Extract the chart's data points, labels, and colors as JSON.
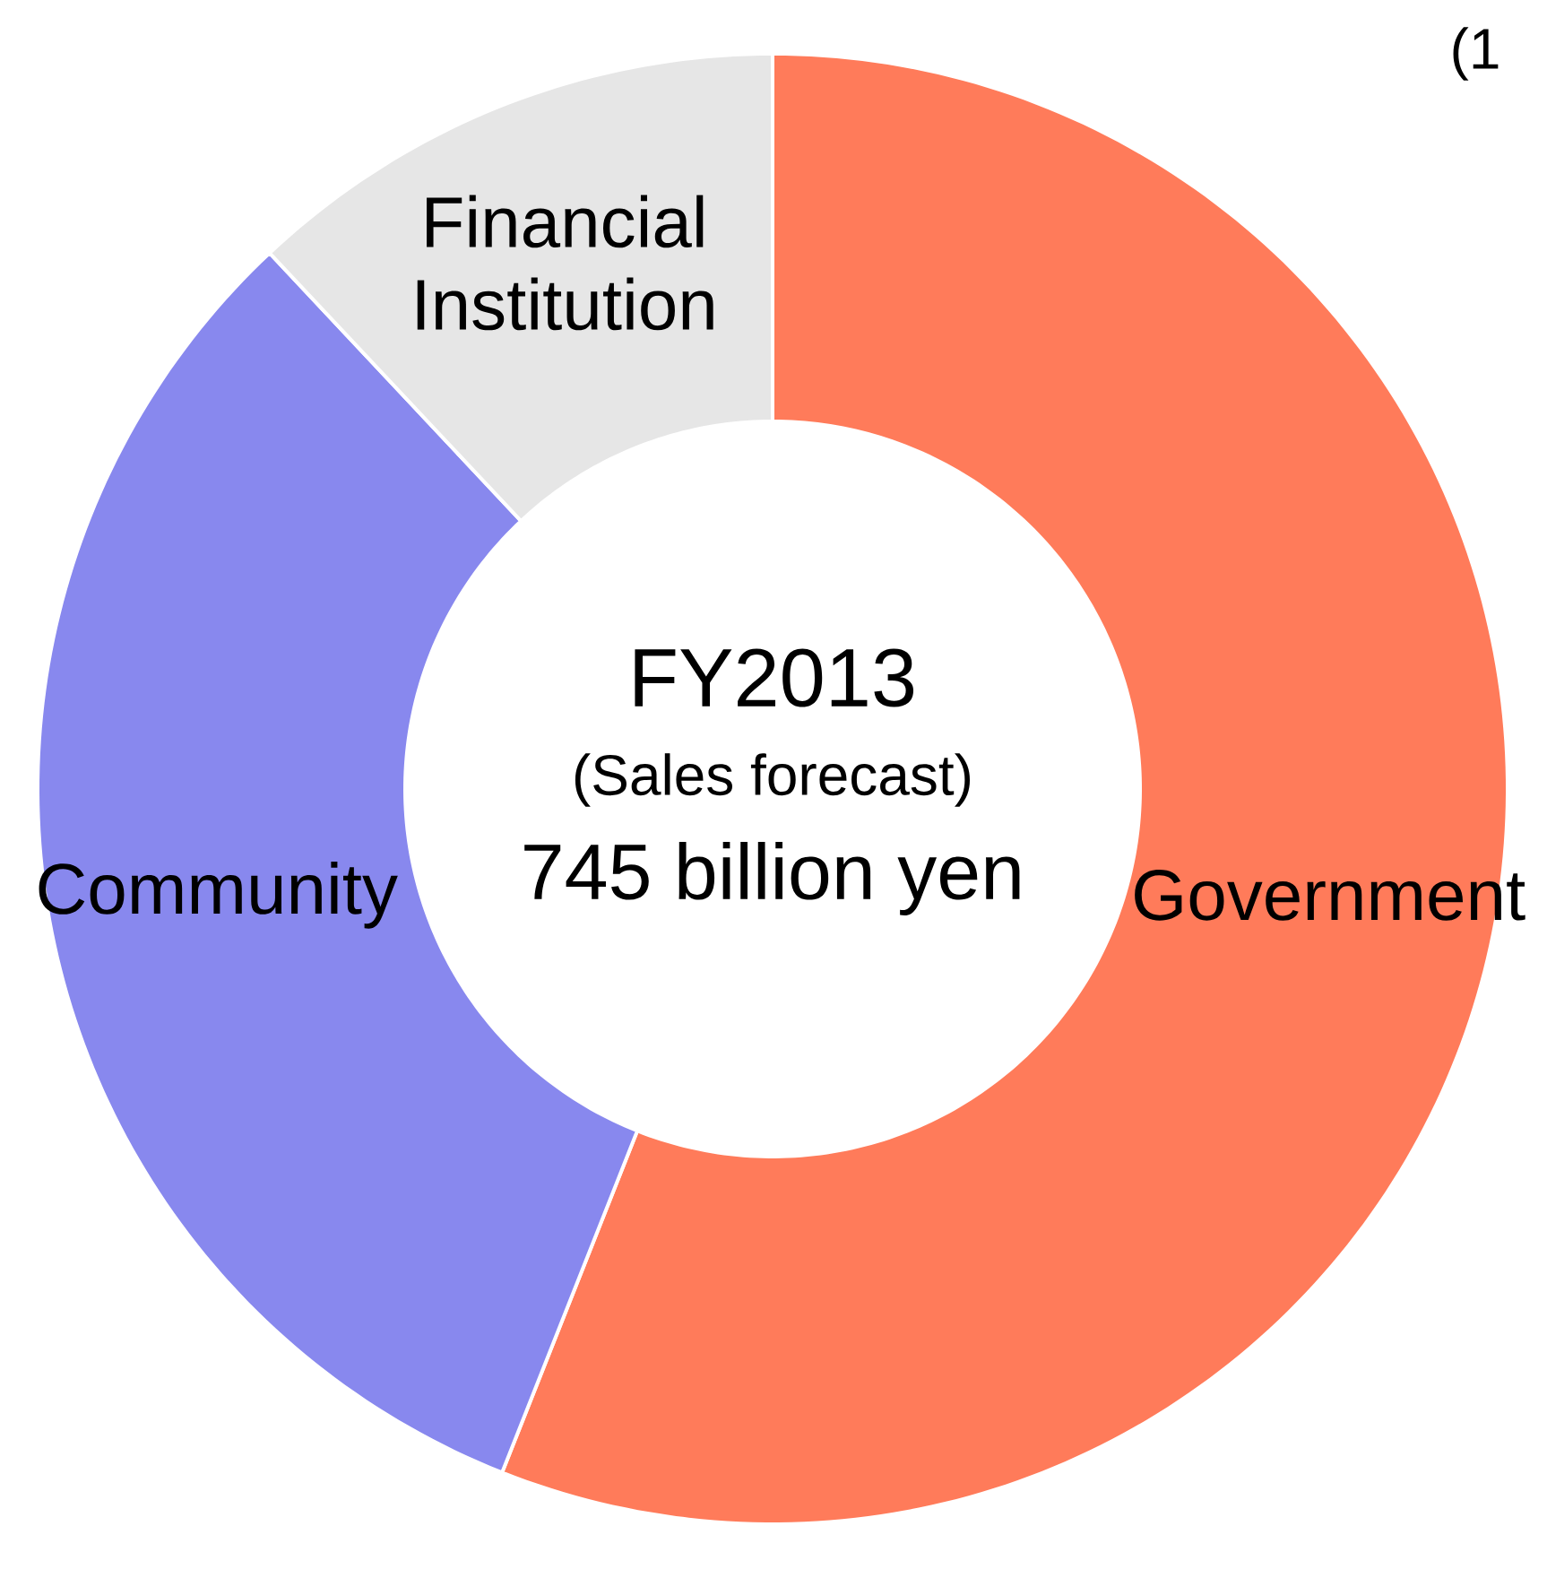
{
  "chart_data": {
    "type": "donut",
    "title": "FY2013",
    "subtitle": "(Sales forecast)",
    "categories": [
      "Government",
      "Community",
      "Financial Institution"
    ],
    "values": [
      56,
      32,
      12
    ],
    "colors": [
      "#ff7b5a",
      "#8888ee",
      "#e6e6e6"
    ],
    "annotations": [
      "745 billion yen",
      "(1"
    ]
  }
}
